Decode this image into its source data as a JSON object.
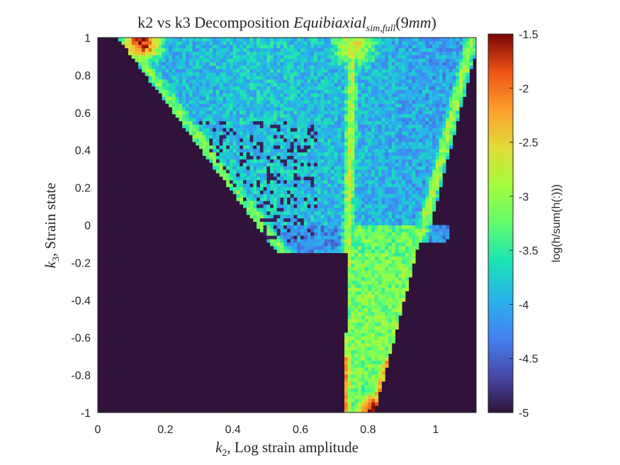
{
  "chart_data": {
    "type": "heatmap",
    "title": {
      "prefix": "k2 vs k3 Decomposition ",
      "main": "Equibiaxial",
      "sub": "sim,full",
      "suffix": "(9",
      "unit": "mm",
      "close": ")"
    },
    "xlabel": {
      "symbol": "k",
      "sub": "2",
      "text": ", Log strain amplitude"
    },
    "ylabel": {
      "symbol": "k",
      "sub": "3",
      "text": ", Strain state"
    },
    "xlim": [
      0,
      1.12
    ],
    "ylim": [
      -1,
      1
    ],
    "xticks": [
      "0",
      "0.2",
      "0.4",
      "0.6",
      "0.8",
      "1"
    ],
    "xtick_values": [
      0,
      0.2,
      0.4,
      0.6,
      0.8,
      1
    ],
    "yticks": [
      "-1",
      "-0.8",
      "-0.6",
      "-0.4",
      "-0.2",
      "0",
      "0.2",
      "0.4",
      "0.6",
      "0.8",
      "1"
    ],
    "ytick_values": [
      -1,
      -0.8,
      -0.6,
      -0.4,
      -0.2,
      0,
      0.2,
      0.4,
      0.6,
      0.8,
      1
    ],
    "colorbar": {
      "label": "log(h/sum(h(:)))",
      "range": [
        -5,
        -1.5
      ],
      "ticks": [
        "-1.5",
        "-2",
        "-2.5",
        "-3",
        "-3.5",
        "-4",
        "-4.5",
        "-5"
      ],
      "tick_values": [
        -1.5,
        -2,
        -2.5,
        -3,
        -3.5,
        -4,
        -4.5,
        -5
      ],
      "colormap": "turbo"
    },
    "grid": "off",
    "bins": {
      "nx": 112,
      "ny": 108
    },
    "features": [
      {
        "label": "hotspot",
        "k2": 0.13,
        "k3": 0.98,
        "value": -1.6
      },
      {
        "label": "hotspot",
        "k2": 0.81,
        "k3": -0.98,
        "value": -1.7
      },
      {
        "label": "ridge",
        "k2_range": [
          0.73,
          0.82
        ],
        "k3_range": [
          -1,
          1
        ],
        "value": -2.8
      },
      {
        "label": "ridge",
        "k2_range": [
          0.82,
          1.11
        ],
        "k3_range": [
          -1,
          0.8
        ],
        "value": -2.9
      }
    ],
    "empty_value": -5
  }
}
